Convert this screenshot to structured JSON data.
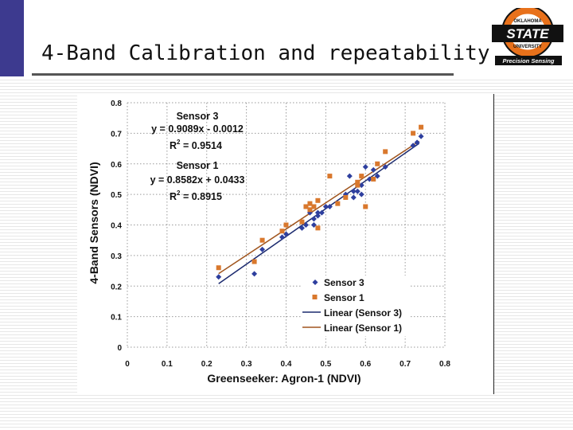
{
  "slide": {
    "title": "4-Band Calibration and repeatability",
    "logo": {
      "top_text": "OKLAHOMA",
      "main_text": "STATE",
      "sub_text": "UNIVERSITY",
      "banner_text": "Precision Sensing"
    }
  },
  "colors": {
    "accent_bar": "#3d3a8f",
    "sensor3": "#2e3f9e",
    "sensor1": "#d9782d",
    "logo_orange": "#e8711b",
    "logo_black": "#111111"
  },
  "chart_data": {
    "type": "scatter",
    "xlabel": "Greenseeker: Agron-1 (NDVI)",
    "ylabel": "4-Band Sensors (NDVI)",
    "xlim": [
      0,
      0.8
    ],
    "ylim": [
      0,
      0.8
    ],
    "x_ticks": [
      "0",
      "0.1",
      "0.2",
      "0.3",
      "0.4",
      "0.5",
      "0.6",
      "0.7",
      "0.8"
    ],
    "y_ticks": [
      "0",
      "0.1",
      "0.2",
      "0.3",
      "0.4",
      "0.5",
      "0.6",
      "0.7",
      "0.8"
    ],
    "grid": true,
    "legend_position": "bottom-right",
    "series": [
      {
        "name": "Sensor 3",
        "marker": "diamond",
        "points": [
          [
            0.23,
            0.23
          ],
          [
            0.32,
            0.24
          ],
          [
            0.34,
            0.32
          ],
          [
            0.39,
            0.36
          ],
          [
            0.4,
            0.37
          ],
          [
            0.44,
            0.39
          ],
          [
            0.45,
            0.4
          ],
          [
            0.46,
            0.44
          ],
          [
            0.47,
            0.4
          ],
          [
            0.47,
            0.42
          ],
          [
            0.48,
            0.43
          ],
          [
            0.48,
            0.44
          ],
          [
            0.49,
            0.44
          ],
          [
            0.5,
            0.46
          ],
          [
            0.51,
            0.46
          ],
          [
            0.55,
            0.5
          ],
          [
            0.56,
            0.56
          ],
          [
            0.57,
            0.51
          ],
          [
            0.57,
            0.49
          ],
          [
            0.58,
            0.51
          ],
          [
            0.59,
            0.53
          ],
          [
            0.59,
            0.5
          ],
          [
            0.6,
            0.59
          ],
          [
            0.61,
            0.55
          ],
          [
            0.62,
            0.58
          ],
          [
            0.63,
            0.56
          ],
          [
            0.65,
            0.59
          ],
          [
            0.72,
            0.66
          ],
          [
            0.73,
            0.67
          ],
          [
            0.74,
            0.69
          ]
        ]
      },
      {
        "name": "Sensor 1",
        "marker": "square",
        "points": [
          [
            0.23,
            0.26
          ],
          [
            0.32,
            0.28
          ],
          [
            0.34,
            0.35
          ],
          [
            0.39,
            0.38
          ],
          [
            0.4,
            0.4
          ],
          [
            0.44,
            0.41
          ],
          [
            0.45,
            0.46
          ],
          [
            0.46,
            0.47
          ],
          [
            0.46,
            0.45
          ],
          [
            0.47,
            0.46
          ],
          [
            0.48,
            0.48
          ],
          [
            0.48,
            0.39
          ],
          [
            0.51,
            0.56
          ],
          [
            0.53,
            0.47
          ],
          [
            0.55,
            0.49
          ],
          [
            0.58,
            0.54
          ],
          [
            0.58,
            0.53
          ],
          [
            0.59,
            0.56
          ],
          [
            0.6,
            0.46
          ],
          [
            0.62,
            0.55
          ],
          [
            0.63,
            0.6
          ],
          [
            0.65,
            0.64
          ],
          [
            0.72,
            0.7
          ],
          [
            0.74,
            0.72
          ]
        ]
      }
    ],
    "trendlines": [
      {
        "name": "Linear (Sensor 3)",
        "slope": 0.9089,
        "intercept": -0.0012,
        "x_range": [
          0.23,
          0.735
        ]
      },
      {
        "name": "Linear (Sensor 1)",
        "slope": 0.8582,
        "intercept": 0.0433,
        "x_range": [
          0.23,
          0.735
        ]
      }
    ],
    "annotations": [
      {
        "title": "Sensor 3",
        "equation": "y = 0.9089x - 0.0012",
        "r2_base": "R",
        "r2_exp": "2",
        "r2_value": " = 0.9514"
      },
      {
        "title": "Sensor 1",
        "equation": "y = 0.8582x + 0.0433",
        "r2_base": "R",
        "r2_exp": "2",
        "r2_value": " = 0.8915"
      }
    ]
  }
}
